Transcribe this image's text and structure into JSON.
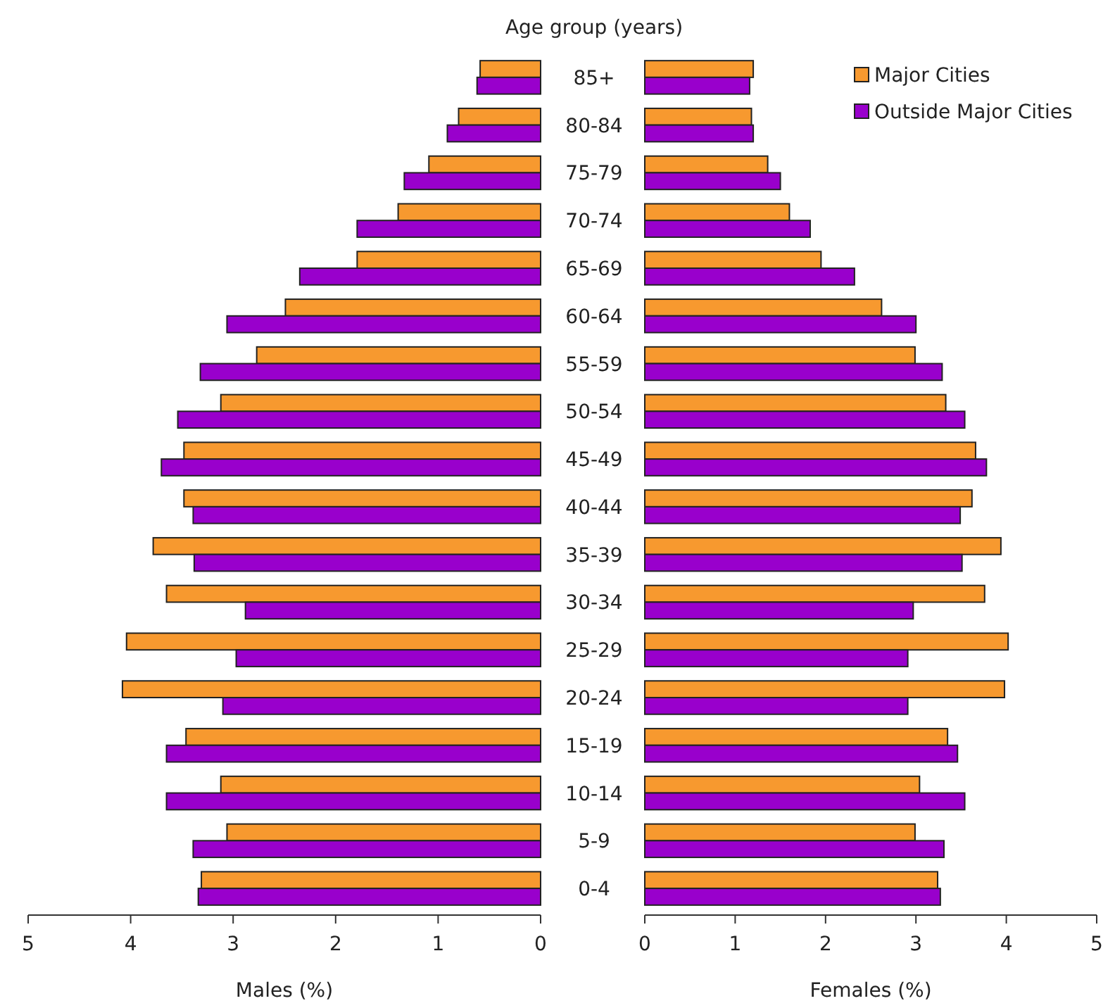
{
  "chart_data": [
    {
      "type": "bar",
      "orientation": "horizontal",
      "ylabel": "Age group (years)",
      "xlabel": "Males (%)",
      "categories": [
        "85+",
        "80-84",
        "75-79",
        "70-74",
        "65-69",
        "60-64",
        "55-59",
        "50-54",
        "45-49",
        "40-44",
        "35-39",
        "30-34",
        "25-29",
        "20-24",
        "15-19",
        "10-14",
        "5-9",
        "0-4"
      ],
      "series": [
        {
          "color": "#f7992f",
          "values": [
            0.59,
            0.8,
            1.09,
            1.39,
            1.79,
            2.49,
            2.77,
            3.12,
            3.48,
            3.48,
            3.78,
            3.65,
            4.04,
            4.08,
            3.46,
            3.12,
            3.06,
            3.31
          ]
        },
        {
          "color": "#9900cc",
          "values": [
            0.62,
            0.91,
            1.33,
            1.79,
            2.35,
            3.06,
            3.32,
            3.54,
            3.7,
            3.39,
            3.38,
            2.88,
            2.97,
            3.1,
            3.65,
            3.65,
            3.39,
            3.34
          ]
        }
      ],
      "xlim": [
        5,
        0
      ],
      "xticks": [
        5,
        4,
        3,
        2,
        1,
        0
      ]
    },
    {
      "type": "bar",
      "orientation": "horizontal",
      "xlabel": "Females (%)",
      "categories": [
        null,
        null,
        null,
        null,
        null,
        null,
        null,
        null,
        null,
        null,
        null,
        null,
        null,
        null,
        null,
        null,
        null,
        null
      ],
      "series": [
        {
          "name": "Major Cities",
          "color": "#f7992f",
          "values": [
            1.2,
            1.18,
            1.36,
            1.6,
            1.95,
            2.62,
            2.99,
            3.33,
            3.66,
            3.62,
            3.94,
            3.76,
            4.02,
            3.98,
            3.35,
            3.04,
            2.99,
            3.24
          ]
        },
        {
          "name": "Outside Major Cities",
          "color": "#9900cc",
          "values": [
            1.16,
            1.2,
            1.5,
            1.83,
            2.32,
            3.0,
            3.29,
            3.54,
            3.78,
            3.49,
            3.51,
            2.97,
            2.91,
            2.91,
            3.46,
            3.54,
            3.31,
            3.27
          ]
        }
      ],
      "xlim": [
        0,
        5
      ],
      "xticks": [
        0,
        1,
        2,
        3,
        4,
        5
      ],
      "tick_labels": "x",
      "legend": "top right"
    }
  ]
}
